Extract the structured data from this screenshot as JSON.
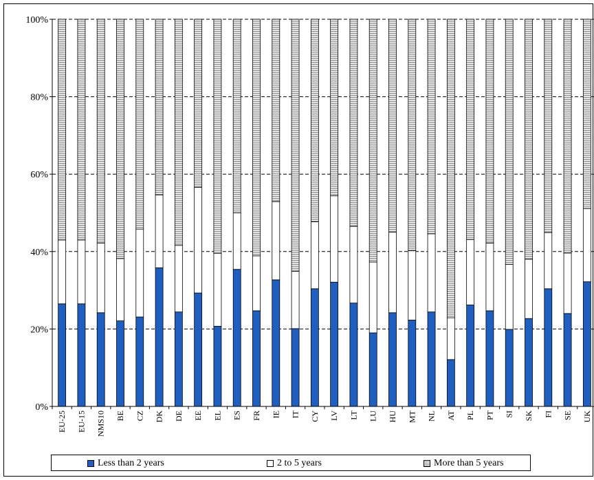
{
  "chart_data": {
    "type": "bar",
    "stacked": true,
    "normalized": true,
    "categories": [
      "EU-25",
      "EU-15",
      "NMS10",
      "BE",
      "CZ",
      "DK",
      "DE",
      "EE",
      "EL",
      "ES",
      "FR",
      "IE",
      "IT",
      "CY",
      "LV",
      "LT",
      "LU",
      "HU",
      "MT",
      "NL",
      "AT",
      "PL",
      "PT",
      "SI",
      "SK",
      "FI",
      "SE",
      "UK"
    ],
    "series": [
      {
        "name": "Less than 2 years",
        "color": "#1f5fbf",
        "values": [
          26.5,
          26.5,
          24.2,
          22.1,
          23.1,
          35.8,
          24.4,
          29.3,
          20.7,
          35.4,
          24.7,
          32.7,
          20.1,
          30.4,
          32.1,
          26.7,
          19.0,
          24.2,
          22.3,
          24.4,
          12.1,
          26.2,
          24.7,
          19.9,
          22.7,
          30.4,
          24.0,
          32.2
        ]
      },
      {
        "name": "2 to 5 years",
        "color": "#ffffff",
        "values": [
          16.5,
          16.5,
          18.0,
          16.1,
          22.7,
          18.8,
          17.2,
          27.3,
          18.8,
          14.6,
          14.2,
          20.2,
          14.8,
          17.3,
          22.3,
          19.8,
          18.3,
          20.8,
          17.9,
          20.2,
          10.8,
          16.9,
          17.5,
          16.8,
          15.3,
          14.5,
          15.6,
          18.9
        ]
      },
      {
        "name": "More than 5 years",
        "color": "striped",
        "values": [
          57.0,
          57.0,
          57.8,
          61.8,
          54.2,
          45.4,
          58.4,
          43.4,
          60.5,
          50.0,
          61.1,
          47.1,
          65.1,
          52.3,
          45.6,
          53.5,
          62.7,
          55.0,
          59.8,
          55.4,
          77.1,
          56.9,
          57.8,
          63.3,
          62.0,
          55.1,
          60.4,
          48.9
        ]
      }
    ],
    "yticks": [
      "0%",
      "20%",
      "40%",
      "60%",
      "80%",
      "100%"
    ],
    "ylim": [
      0,
      100
    ],
    "grid": "horizontal dashed",
    "legend_position": "bottom"
  }
}
